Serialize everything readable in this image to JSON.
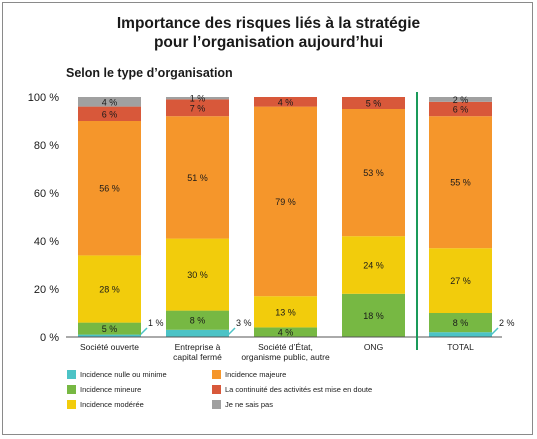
{
  "chart_data": {
    "type": "bar",
    "stacked": true,
    "title_line1": "Importance des risques liés à la stratégie",
    "title_line2": "pour l’organisation aujourd’hui",
    "subtitle": "Selon le type d’organisation",
    "categories": [
      [
        "Société ouverte"
      ],
      [
        "Entreprise à",
        "capital fermé"
      ],
      [
        "Société d’État,",
        "organisme public, autre"
      ],
      [
        "ONG"
      ],
      [
        "TOTAL"
      ]
    ],
    "ylim": [
      0,
      100
    ],
    "yticks": [
      "0 %",
      "20 %",
      "40 %",
      "60 %",
      "80 %",
      "100 %"
    ],
    "series": [
      {
        "name": "Incidence nulle ou minime",
        "color": "#4cc3c6",
        "values": [
          1,
          3,
          0,
          0,
          2
        ],
        "labels": [
          "1 %",
          "3 %",
          "",
          "",
          "2 %"
        ]
      },
      {
        "name": "Incidence mineure",
        "color": "#77b843",
        "values": [
          5,
          8,
          4,
          18,
          8
        ],
        "labels": [
          "5 %",
          "8 %",
          "4 %",
          "18 %",
          "8 %"
        ]
      },
      {
        "name": "Incidence modérée",
        "color": "#f2cc0c",
        "values": [
          28,
          30,
          13,
          24,
          27
        ],
        "labels": [
          "28 %",
          "30 %",
          "13 %",
          "24 %",
          "27 %"
        ]
      },
      {
        "name": "Incidence majeure",
        "color": "#f5962b",
        "values": [
          56,
          51,
          79,
          53,
          55
        ],
        "labels": [
          "56 %",
          "51 %",
          "79 %",
          "53 %",
          "55 %"
        ]
      },
      {
        "name": "La continuité des activités est mise en doute",
        "color": "#d8583a",
        "values": [
          6,
          7,
          4,
          5,
          6
        ],
        "labels": [
          "6 %",
          "7 %",
          "4 %",
          "5 %",
          "6 %"
        ]
      },
      {
        "name": "Je ne sais pas",
        "color": "#a0a0a0",
        "values": [
          4,
          1,
          0,
          0,
          2
        ],
        "labels": [
          "4 %",
          "1 %",
          "",
          "",
          "2 %"
        ]
      }
    ],
    "legend_position": "bottom",
    "separator_color": "#1a9a5a",
    "grid": false
  }
}
